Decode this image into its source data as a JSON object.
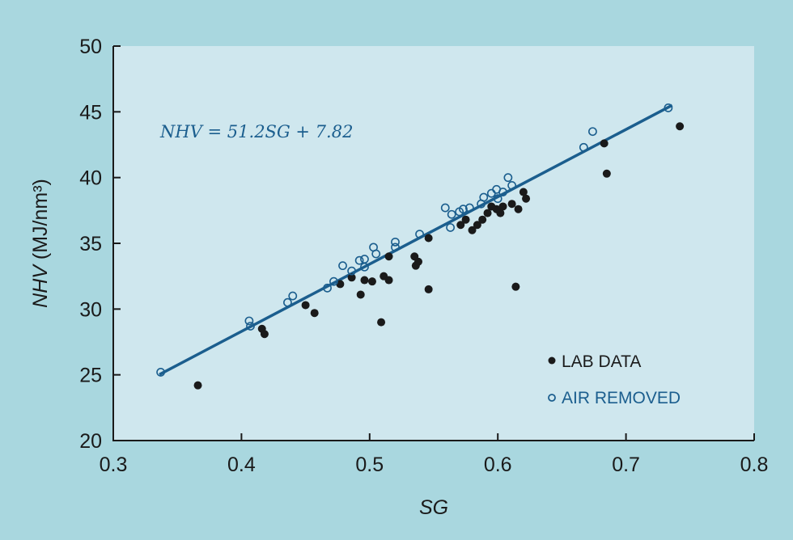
{
  "chart_data": {
    "type": "scatter",
    "title": "",
    "xlabel": "SG",
    "ylabel_italic": "NHV",
    "ylabel_unit": "(MJ/nm³)",
    "xlim": [
      0.3,
      0.8
    ],
    "ylim": [
      20,
      50
    ],
    "xticks": [
      "0.3",
      "0.4",
      "0.5",
      "0.6",
      "0.7",
      "0.8"
    ],
    "yticks": [
      "20",
      "25",
      "30",
      "35",
      "40",
      "45",
      "50"
    ],
    "grid": false,
    "legend_position": "bottom-right",
    "annotation": "NHV = 51.2SG + 7.82",
    "fit": {
      "slope": 51.2,
      "intercept": 7.82,
      "x_range": [
        0.336,
        0.736
      ]
    },
    "colors": {
      "outer": "#a9d7df",
      "plot": "#cfe7ee",
      "fit": "#1b5e8e",
      "lab": "#1a1a1a",
      "air": "#1b5e8e"
    },
    "series": [
      {
        "name": "LAB DATA",
        "marker": "filled",
        "points": [
          [
            0.366,
            24.2
          ],
          [
            0.416,
            28.5
          ],
          [
            0.418,
            28.1
          ],
          [
            0.45,
            30.3
          ],
          [
            0.457,
            29.7
          ],
          [
            0.477,
            31.9
          ],
          [
            0.486,
            32.4
          ],
          [
            0.493,
            31.1
          ],
          [
            0.496,
            32.2
          ],
          [
            0.502,
            32.1
          ],
          [
            0.509,
            29.0
          ],
          [
            0.511,
            32.5
          ],
          [
            0.515,
            32.2
          ],
          [
            0.515,
            34.0
          ],
          [
            0.535,
            34.0
          ],
          [
            0.536,
            33.3
          ],
          [
            0.538,
            33.6
          ],
          [
            0.546,
            35.4
          ],
          [
            0.546,
            31.5
          ],
          [
            0.571,
            36.4
          ],
          [
            0.575,
            36.8
          ],
          [
            0.58,
            36.0
          ],
          [
            0.584,
            36.4
          ],
          [
            0.588,
            36.8
          ],
          [
            0.592,
            37.3
          ],
          [
            0.595,
            37.8
          ],
          [
            0.599,
            37.6
          ],
          [
            0.602,
            37.3
          ],
          [
            0.604,
            37.8
          ],
          [
            0.611,
            38.0
          ],
          [
            0.616,
            37.6
          ],
          [
            0.62,
            38.9
          ],
          [
            0.622,
            38.4
          ],
          [
            0.614,
            31.7
          ],
          [
            0.683,
            42.6
          ],
          [
            0.685,
            40.3
          ],
          [
            0.742,
            43.9
          ]
        ]
      },
      {
        "name": "AIR REMOVED",
        "marker": "open",
        "points": [
          [
            0.337,
            25.2
          ],
          [
            0.406,
            29.1
          ],
          [
            0.407,
            28.7
          ],
          [
            0.436,
            30.5
          ],
          [
            0.44,
            31.0
          ],
          [
            0.467,
            31.6
          ],
          [
            0.472,
            32.1
          ],
          [
            0.479,
            33.3
          ],
          [
            0.486,
            32.9
          ],
          [
            0.492,
            33.7
          ],
          [
            0.496,
            33.8
          ],
          [
            0.496,
            33.2
          ],
          [
            0.503,
            34.7
          ],
          [
            0.505,
            34.2
          ],
          [
            0.52,
            35.1
          ],
          [
            0.52,
            34.7
          ],
          [
            0.539,
            35.7
          ],
          [
            0.559,
            37.7
          ],
          [
            0.563,
            36.2
          ],
          [
            0.564,
            37.2
          ],
          [
            0.57,
            37.4
          ],
          [
            0.573,
            37.6
          ],
          [
            0.578,
            37.7
          ],
          [
            0.587,
            38.0
          ],
          [
            0.589,
            38.5
          ],
          [
            0.595,
            38.8
          ],
          [
            0.599,
            39.1
          ],
          [
            0.6,
            38.4
          ],
          [
            0.604,
            38.9
          ],
          [
            0.608,
            40.0
          ],
          [
            0.611,
            39.4
          ],
          [
            0.667,
            42.3
          ],
          [
            0.674,
            43.5
          ],
          [
            0.733,
            45.3
          ]
        ]
      }
    ]
  }
}
